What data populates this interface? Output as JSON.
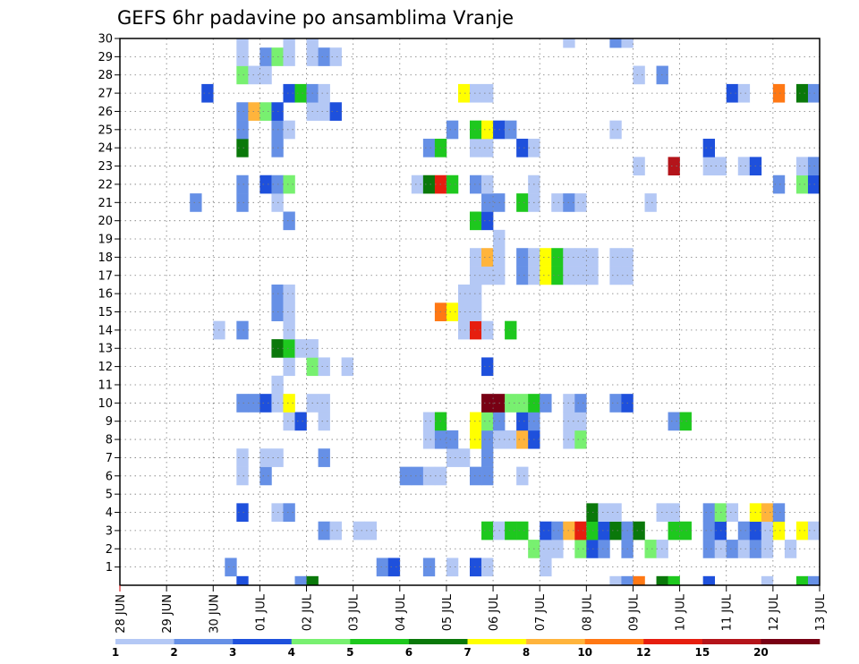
{
  "chart_data": {
    "type": "heatmap",
    "title": "GEFS 6hr padavine po ansamblima Vranje",
    "x_tick_labels": [
      "28 JUN",
      "29 JUN",
      "30 JUN",
      "01 JUL",
      "02 JUL",
      "03 JUL",
      "04 JUL",
      "05 JUL",
      "06 JUL",
      "07 JUL",
      "08 JUL",
      "09 JUL",
      "10 JUL",
      "11 JUL",
      "12 JUL",
      "13 JUL"
    ],
    "y_tick_labels": [
      "1",
      "2",
      "3",
      "4",
      "5",
      "6",
      "7",
      "8",
      "9",
      "10",
      "11",
      "12",
      "13",
      "14",
      "15",
      "16",
      "17",
      "18",
      "19",
      "20",
      "21",
      "22",
      "23",
      "24",
      "25",
      "26",
      "27",
      "28",
      "29",
      "30"
    ],
    "y_range": [
      0,
      30
    ],
    "x_range_days": [
      0,
      15
    ],
    "steps_per_day": 4,
    "grid": true,
    "colorbar": {
      "labels": [
        "1",
        "2",
        "3",
        "4",
        "5",
        "6",
        "7",
        "8",
        "10",
        "12",
        "15",
        "20"
      ],
      "colors": [
        "#b4c8f5",
        "#6690e6",
        "#1e50dc",
        "#78f070",
        "#1ec81e",
        "#0a780a",
        "#ffff00",
        "#ffb43c",
        "#ff7814",
        "#e61e0f",
        "#b4141a",
        "#780014"
      ]
    },
    "cells": [
      [
        1,
        9,
        2
      ],
      [
        1,
        22,
        2
      ],
      [
        1,
        23,
        3
      ],
      [
        1,
        26,
        2
      ],
      [
        1,
        28,
        1
      ],
      [
        1,
        30,
        3
      ],
      [
        1,
        31,
        1
      ],
      [
        1,
        36,
        1
      ],
      [
        2,
        35,
        4
      ],
      [
        2,
        36,
        1
      ],
      [
        2,
        37,
        1
      ],
      [
        2,
        39,
        4
      ],
      [
        2,
        40,
        3
      ],
      [
        2,
        41,
        2
      ],
      [
        2,
        43,
        2
      ],
      [
        2,
        45,
        4
      ],
      [
        2,
        46,
        1
      ],
      [
        2,
        50,
        2
      ],
      [
        2,
        51,
        1
      ],
      [
        2,
        52,
        2
      ],
      [
        2,
        53,
        1
      ],
      [
        2,
        54,
        2
      ],
      [
        2,
        55,
        1
      ],
      [
        2,
        57,
        1
      ],
      [
        3,
        17,
        2
      ],
      [
        3,
        18,
        1
      ],
      [
        3,
        20,
        1
      ],
      [
        3,
        21,
        1
      ],
      [
        3,
        31,
        5
      ],
      [
        3,
        32,
        1
      ],
      [
        3,
        33,
        5
      ],
      [
        3,
        34,
        5
      ],
      [
        3,
        36,
        3
      ],
      [
        3,
        37,
        2
      ],
      [
        3,
        38,
        8
      ],
      [
        3,
        39,
        10
      ],
      [
        3,
        40,
        5
      ],
      [
        3,
        41,
        3
      ],
      [
        3,
        42,
        6
      ],
      [
        3,
        43,
        2
      ],
      [
        3,
        44,
        6
      ],
      [
        3,
        47,
        5
      ],
      [
        3,
        48,
        5
      ],
      [
        3,
        50,
        2
      ],
      [
        3,
        51,
        3
      ],
      [
        3,
        53,
        2
      ],
      [
        3,
        54,
        3
      ],
      [
        3,
        55,
        1
      ],
      [
        3,
        56,
        7
      ],
      [
        3,
        58,
        7
      ],
      [
        3,
        59,
        1
      ],
      [
        4,
        10,
        3
      ],
      [
        4,
        13,
        1
      ],
      [
        4,
        14,
        2
      ],
      [
        4,
        40,
        6
      ],
      [
        4,
        41,
        1
      ],
      [
        4,
        42,
        1
      ],
      [
        4,
        46,
        1
      ],
      [
        4,
        47,
        1
      ],
      [
        4,
        50,
        2
      ],
      [
        4,
        51,
        4
      ],
      [
        4,
        52,
        1
      ],
      [
        4,
        54,
        7
      ],
      [
        4,
        55,
        8
      ],
      [
        4,
        56,
        2
      ],
      [
        5,
        60,
        1
      ],
      [
        6,
        10,
        1
      ],
      [
        6,
        12,
        2
      ],
      [
        6,
        24,
        2
      ],
      [
        6,
        25,
        2
      ],
      [
        6,
        26,
        1
      ],
      [
        6,
        27,
        1
      ],
      [
        6,
        30,
        2
      ],
      [
        6,
        31,
        2
      ],
      [
        6,
        34,
        1
      ],
      [
        7,
        10,
        1
      ],
      [
        7,
        12,
        1
      ],
      [
        7,
        13,
        1
      ],
      [
        7,
        17,
        2
      ],
      [
        7,
        28,
        1
      ],
      [
        7,
        29,
        1
      ],
      [
        7,
        31,
        2
      ],
      [
        7,
        60,
        2
      ],
      [
        8,
        26,
        1
      ],
      [
        8,
        27,
        2
      ],
      [
        8,
        28,
        2
      ],
      [
        8,
        30,
        7
      ],
      [
        8,
        31,
        2
      ],
      [
        8,
        32,
        1
      ],
      [
        8,
        33,
        1
      ],
      [
        8,
        34,
        8
      ],
      [
        8,
        35,
        3
      ],
      [
        8,
        38,
        1
      ],
      [
        8,
        39,
        4
      ],
      [
        9,
        14,
        1
      ],
      [
        9,
        15,
        3
      ],
      [
        9,
        17,
        1
      ],
      [
        9,
        26,
        1
      ],
      [
        9,
        27,
        5
      ],
      [
        9,
        30,
        7
      ],
      [
        9,
        31,
        4
      ],
      [
        9,
        32,
        2
      ],
      [
        9,
        34,
        3
      ],
      [
        9,
        35,
        2
      ],
      [
        9,
        38,
        1
      ],
      [
        9,
        39,
        1
      ],
      [
        9,
        47,
        2
      ],
      [
        9,
        48,
        5
      ],
      [
        10,
        10,
        2
      ],
      [
        10,
        11,
        2
      ],
      [
        10,
        12,
        3
      ],
      [
        10,
        13,
        1
      ],
      [
        10,
        14,
        7
      ],
      [
        10,
        16,
        1
      ],
      [
        10,
        17,
        1
      ],
      [
        10,
        31,
        12
      ],
      [
        10,
        32,
        12
      ],
      [
        10,
        33,
        4
      ],
      [
        10,
        34,
        4
      ],
      [
        10,
        35,
        5
      ],
      [
        10,
        36,
        2
      ],
      [
        10,
        38,
        1
      ],
      [
        10,
        39,
        2
      ],
      [
        10,
        42,
        2
      ],
      [
        10,
        43,
        3
      ],
      [
        11,
        13,
        1
      ],
      [
        12,
        14,
        1
      ],
      [
        12,
        16,
        4
      ],
      [
        12,
        17,
        1
      ],
      [
        12,
        19,
        1
      ],
      [
        12,
        31,
        3
      ],
      [
        13,
        13,
        6
      ],
      [
        13,
        14,
        5
      ],
      [
        13,
        15,
        1
      ],
      [
        13,
        16,
        1
      ],
      [
        14,
        8,
        1
      ],
      [
        14,
        10,
        2
      ],
      [
        14,
        14,
        1
      ],
      [
        14,
        29,
        1
      ],
      [
        14,
        30,
        10
      ],
      [
        14,
        31,
        1
      ],
      [
        14,
        33,
        5
      ],
      [
        15,
        13,
        2
      ],
      [
        15,
        14,
        1
      ],
      [
        15,
        27,
        9
      ],
      [
        15,
        28,
        7
      ],
      [
        15,
        29,
        1
      ],
      [
        15,
        30,
        1
      ],
      [
        16,
        13,
        2
      ],
      [
        16,
        14,
        1
      ],
      [
        16,
        29,
        1
      ],
      [
        16,
        30,
        1
      ],
      [
        17,
        30,
        1
      ],
      [
        17,
        31,
        1
      ],
      [
        17,
        32,
        1
      ],
      [
        17,
        34,
        2
      ],
      [
        17,
        35,
        1
      ],
      [
        17,
        36,
        7
      ],
      [
        17,
        37,
        5
      ],
      [
        17,
        38,
        1
      ],
      [
        17,
        39,
        1
      ],
      [
        17,
        40,
        1
      ],
      [
        17,
        42,
        1
      ],
      [
        17,
        43,
        1
      ],
      [
        18,
        30,
        1
      ],
      [
        18,
        31,
        8
      ],
      [
        18,
        32,
        1
      ],
      [
        18,
        34,
        2
      ],
      [
        18,
        35,
        1
      ],
      [
        18,
        36,
        7
      ],
      [
        18,
        37,
        5
      ],
      [
        18,
        38,
        1
      ],
      [
        18,
        39,
        1
      ],
      [
        18,
        40,
        1
      ],
      [
        18,
        42,
        1
      ],
      [
        18,
        43,
        1
      ],
      [
        19,
        32,
        1
      ],
      [
        20,
        14,
        2
      ],
      [
        20,
        30,
        5
      ],
      [
        20,
        31,
        3
      ],
      [
        21,
        6,
        2
      ],
      [
        21,
        10,
        2
      ],
      [
        21,
        13,
        1
      ],
      [
        21,
        31,
        2
      ],
      [
        21,
        32,
        2
      ],
      [
        21,
        34,
        5
      ],
      [
        21,
        35,
        1
      ],
      [
        21,
        37,
        1
      ],
      [
        21,
        38,
        2
      ],
      [
        21,
        39,
        1
      ],
      [
        21,
        45,
        1
      ],
      [
        22,
        10,
        2
      ],
      [
        22,
        12,
        3
      ],
      [
        22,
        13,
        2
      ],
      [
        22,
        14,
        4
      ],
      [
        22,
        25,
        1
      ],
      [
        22,
        26,
        6
      ],
      [
        22,
        27,
        10
      ],
      [
        22,
        28,
        5
      ],
      [
        22,
        30,
        2
      ],
      [
        22,
        31,
        1
      ],
      [
        22,
        35,
        1
      ],
      [
        22,
        56,
        2
      ],
      [
        22,
        58,
        4
      ],
      [
        22,
        59,
        3
      ],
      [
        23,
        44,
        1
      ],
      [
        23,
        47,
        11
      ],
      [
        23,
        50,
        1
      ],
      [
        23,
        51,
        1
      ],
      [
        23,
        53,
        1
      ],
      [
        23,
        54,
        3
      ],
      [
        23,
        58,
        1
      ],
      [
        23,
        59,
        2
      ],
      [
        24,
        10,
        6
      ],
      [
        24,
        13,
        2
      ],
      [
        24,
        26,
        2
      ],
      [
        24,
        27,
        5
      ],
      [
        24,
        30,
        1
      ],
      [
        24,
        31,
        1
      ],
      [
        24,
        34,
        3
      ],
      [
        24,
        35,
        1
      ],
      [
        24,
        50,
        3
      ],
      [
        25,
        10,
        2
      ],
      [
        25,
        13,
        2
      ],
      [
        25,
        14,
        1
      ],
      [
        25,
        28,
        2
      ],
      [
        25,
        30,
        5
      ],
      [
        25,
        31,
        7
      ],
      [
        25,
        32,
        3
      ],
      [
        25,
        33,
        2
      ],
      [
        25,
        42,
        1
      ],
      [
        26,
        10,
        2
      ],
      [
        26,
        11,
        8
      ],
      [
        26,
        12,
        4
      ],
      [
        26,
        13,
        3
      ],
      [
        26,
        16,
        1
      ],
      [
        26,
        17,
        1
      ],
      [
        26,
        18,
        3
      ],
      [
        27,
        7,
        3
      ],
      [
        27,
        14,
        3
      ],
      [
        27,
        15,
        5
      ],
      [
        27,
        16,
        2
      ],
      [
        27,
        17,
        1
      ],
      [
        27,
        29,
        7
      ],
      [
        27,
        30,
        1
      ],
      [
        27,
        31,
        1
      ],
      [
        27,
        52,
        3
      ],
      [
        27,
        53,
        1
      ],
      [
        27,
        56,
        9
      ],
      [
        27,
        58,
        6
      ],
      [
        27,
        59,
        2
      ],
      [
        27,
        60,
        3
      ],
      [
        28,
        10,
        4
      ],
      [
        28,
        11,
        1
      ],
      [
        28,
        12,
        1
      ],
      [
        28,
        44,
        1
      ],
      [
        28,
        46,
        2
      ],
      [
        29,
        10,
        1
      ],
      [
        29,
        12,
        2
      ],
      [
        29,
        13,
        4
      ],
      [
        29,
        14,
        1
      ],
      [
        29,
        16,
        1
      ],
      [
        29,
        17,
        2
      ],
      [
        29,
        18,
        1
      ],
      [
        30,
        10,
        1
      ],
      [
        30,
        14,
        1
      ],
      [
        30,
        16,
        1
      ],
      [
        30,
        38,
        1
      ],
      [
        30,
        42,
        2
      ],
      [
        30,
        43,
        1
      ],
      [
        0,
        10,
        3
      ],
      [
        0,
        15,
        2
      ],
      [
        0,
        16,
        6
      ],
      [
        0,
        42,
        1
      ],
      [
        0,
        43,
        2
      ],
      [
        0,
        44,
        9
      ],
      [
        0,
        46,
        6
      ],
      [
        0,
        47,
        5
      ],
      [
        0,
        50,
        3
      ],
      [
        0,
        55,
        1
      ],
      [
        0,
        58,
        5
      ],
      [
        0,
        59,
        2
      ],
      [
        0,
        60,
        3
      ]
    ]
  }
}
